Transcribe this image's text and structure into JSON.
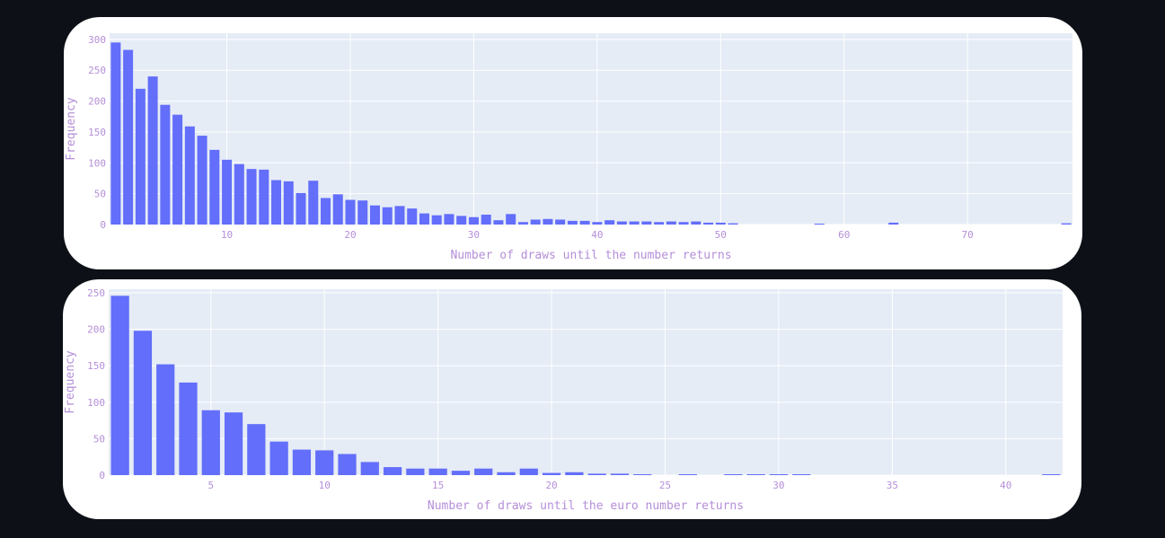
{
  "chart_data": [
    {
      "type": "bar",
      "xlabel": "Number of draws until the number returns",
      "ylabel": "Frequency",
      "xlim": [
        0.5,
        78.5
      ],
      "ylim": [
        0,
        310
      ],
      "xticks": [
        10,
        20,
        30,
        40,
        50,
        60,
        70
      ],
      "yticks": [
        0,
        50,
        100,
        150,
        200,
        250,
        300
      ],
      "grid": true,
      "bar_color": "#636efa",
      "plot_bg": "#e5ecf6",
      "tick_color": "#b48ed8",
      "x": [
        1,
        2,
        3,
        4,
        5,
        6,
        7,
        8,
        9,
        10,
        11,
        12,
        13,
        14,
        15,
        16,
        17,
        18,
        19,
        20,
        21,
        22,
        23,
        24,
        25,
        26,
        27,
        28,
        29,
        30,
        31,
        32,
        33,
        34,
        35,
        36,
        37,
        38,
        39,
        40,
        41,
        42,
        43,
        44,
        45,
        46,
        47,
        48,
        49,
        50,
        51,
        58,
        64,
        78
      ],
      "values": [
        295,
        283,
        220,
        240,
        194,
        178,
        159,
        144,
        121,
        105,
        98,
        90,
        89,
        72,
        70,
        51,
        71,
        43,
        49,
        40,
        39,
        31,
        28,
        30,
        26,
        18,
        15,
        17,
        14,
        12,
        16,
        7,
        17,
        4,
        8,
        9,
        8,
        6,
        6,
        4,
        7,
        5,
        5,
        5,
        4,
        5,
        4,
        5,
        3,
        3,
        2,
        1,
        3,
        2
      ]
    },
    {
      "type": "bar",
      "xlabel": "Number of draws until the euro number returns",
      "ylabel": "Frequency",
      "xlim": [
        0.5,
        42.5
      ],
      "ylim": [
        0,
        255
      ],
      "xticks": [
        5,
        10,
        15,
        20,
        25,
        30,
        35,
        40
      ],
      "yticks": [
        0,
        50,
        100,
        150,
        200,
        250
      ],
      "grid": true,
      "bar_color": "#636efa",
      "plot_bg": "#e5ecf6",
      "tick_color": "#b48ed8",
      "x": [
        1,
        2,
        3,
        4,
        5,
        6,
        7,
        8,
        9,
        10,
        11,
        12,
        13,
        14,
        15,
        16,
        17,
        18,
        19,
        20,
        21,
        22,
        23,
        24,
        26,
        28,
        29,
        30,
        31,
        42
      ],
      "values": [
        246,
        198,
        152,
        127,
        89,
        86,
        70,
        46,
        35,
        34,
        29,
        18,
        11,
        9,
        9,
        6,
        9,
        4,
        9,
        3,
        4,
        2,
        2,
        1,
        1,
        1,
        1,
        1,
        1,
        1
      ]
    }
  ]
}
